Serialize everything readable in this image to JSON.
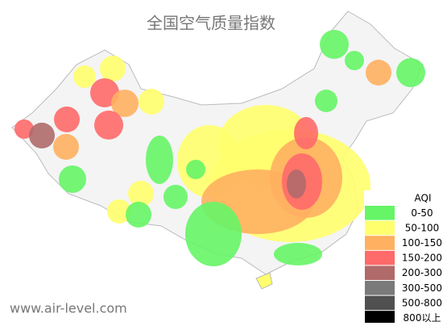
{
  "title": "全国空气质量指数",
  "watermark": "www.air-level.com",
  "legend": {
    "title": "AQI",
    "items": [
      {
        "label": "0-50",
        "color": "#66f566"
      },
      {
        "label": "50-100",
        "color": "#ffff6e"
      },
      {
        "label": "100-150",
        "color": "#ffb060"
      },
      {
        "label": "150-200",
        "color": "#ff6a6a"
      },
      {
        "label": "200-300",
        "color": "#b06a6a"
      },
      {
        "label": "300-500",
        "color": "#7a7a7a"
      },
      {
        "label": "500-800",
        "color": "#505050"
      },
      {
        "label": "800以上",
        "color": "#000000"
      }
    ]
  }
}
